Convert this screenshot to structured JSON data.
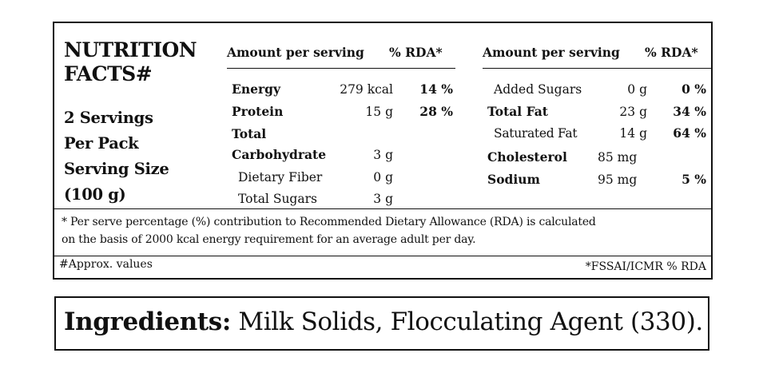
{
  "label": {
    "title_line1": "NUTRITION",
    "title_line2": "FACTS#",
    "servings_line1": "2 Servings",
    "servings_line2": "Per Pack",
    "servings_line3": "Serving Size",
    "servings_line4": "(100 g)"
  },
  "headers": {
    "amount": "Amount per serving",
    "rda": "% RDA*"
  },
  "left_rows": [
    {
      "name": "Energy",
      "amount": "279 kcal",
      "rda": "14 %"
    },
    {
      "name": "Protein",
      "amount": "15 g",
      "rda": "28 %"
    },
    {
      "name": "Total",
      "amount": "",
      "rda": ""
    },
    {
      "name": "Carbohydrate",
      "amount": "3 g",
      "rda": ""
    },
    {
      "name": "Dietary Fiber",
      "amount": "0 g",
      "rda": ""
    },
    {
      "name": "Total Sugars",
      "amount": "3 g",
      "rda": ""
    }
  ],
  "right_rows": [
    {
      "name": "Added Sugars",
      "amount": "0 g",
      "rda": "0 %"
    },
    {
      "name": "Total Fat",
      "amount": "23 g",
      "rda": "34 %"
    },
    {
      "name": "Saturated Fat",
      "amount": "14 g",
      "rda": "64 %"
    },
    {
      "name": "Cholesterol",
      "amount": "85 mg",
      "rda": ""
    },
    {
      "name": "Sodium",
      "amount": "95 mg",
      "rda": "5 %"
    }
  ],
  "footnote": {
    "line1": "* Per serve percentage (%) contribution to Recommended Dietary Allowance (RDA) is calculated",
    "line2": "on the basis of 2000 kcal energy requirement for an average adult per day."
  },
  "notes": {
    "approx": "#Approx. values",
    "source": "*FSSAI/ICMR % RDA"
  },
  "ingredients": {
    "label": "Ingredients:",
    "text": "Milk Solids, Flocculating Agent (330)."
  }
}
